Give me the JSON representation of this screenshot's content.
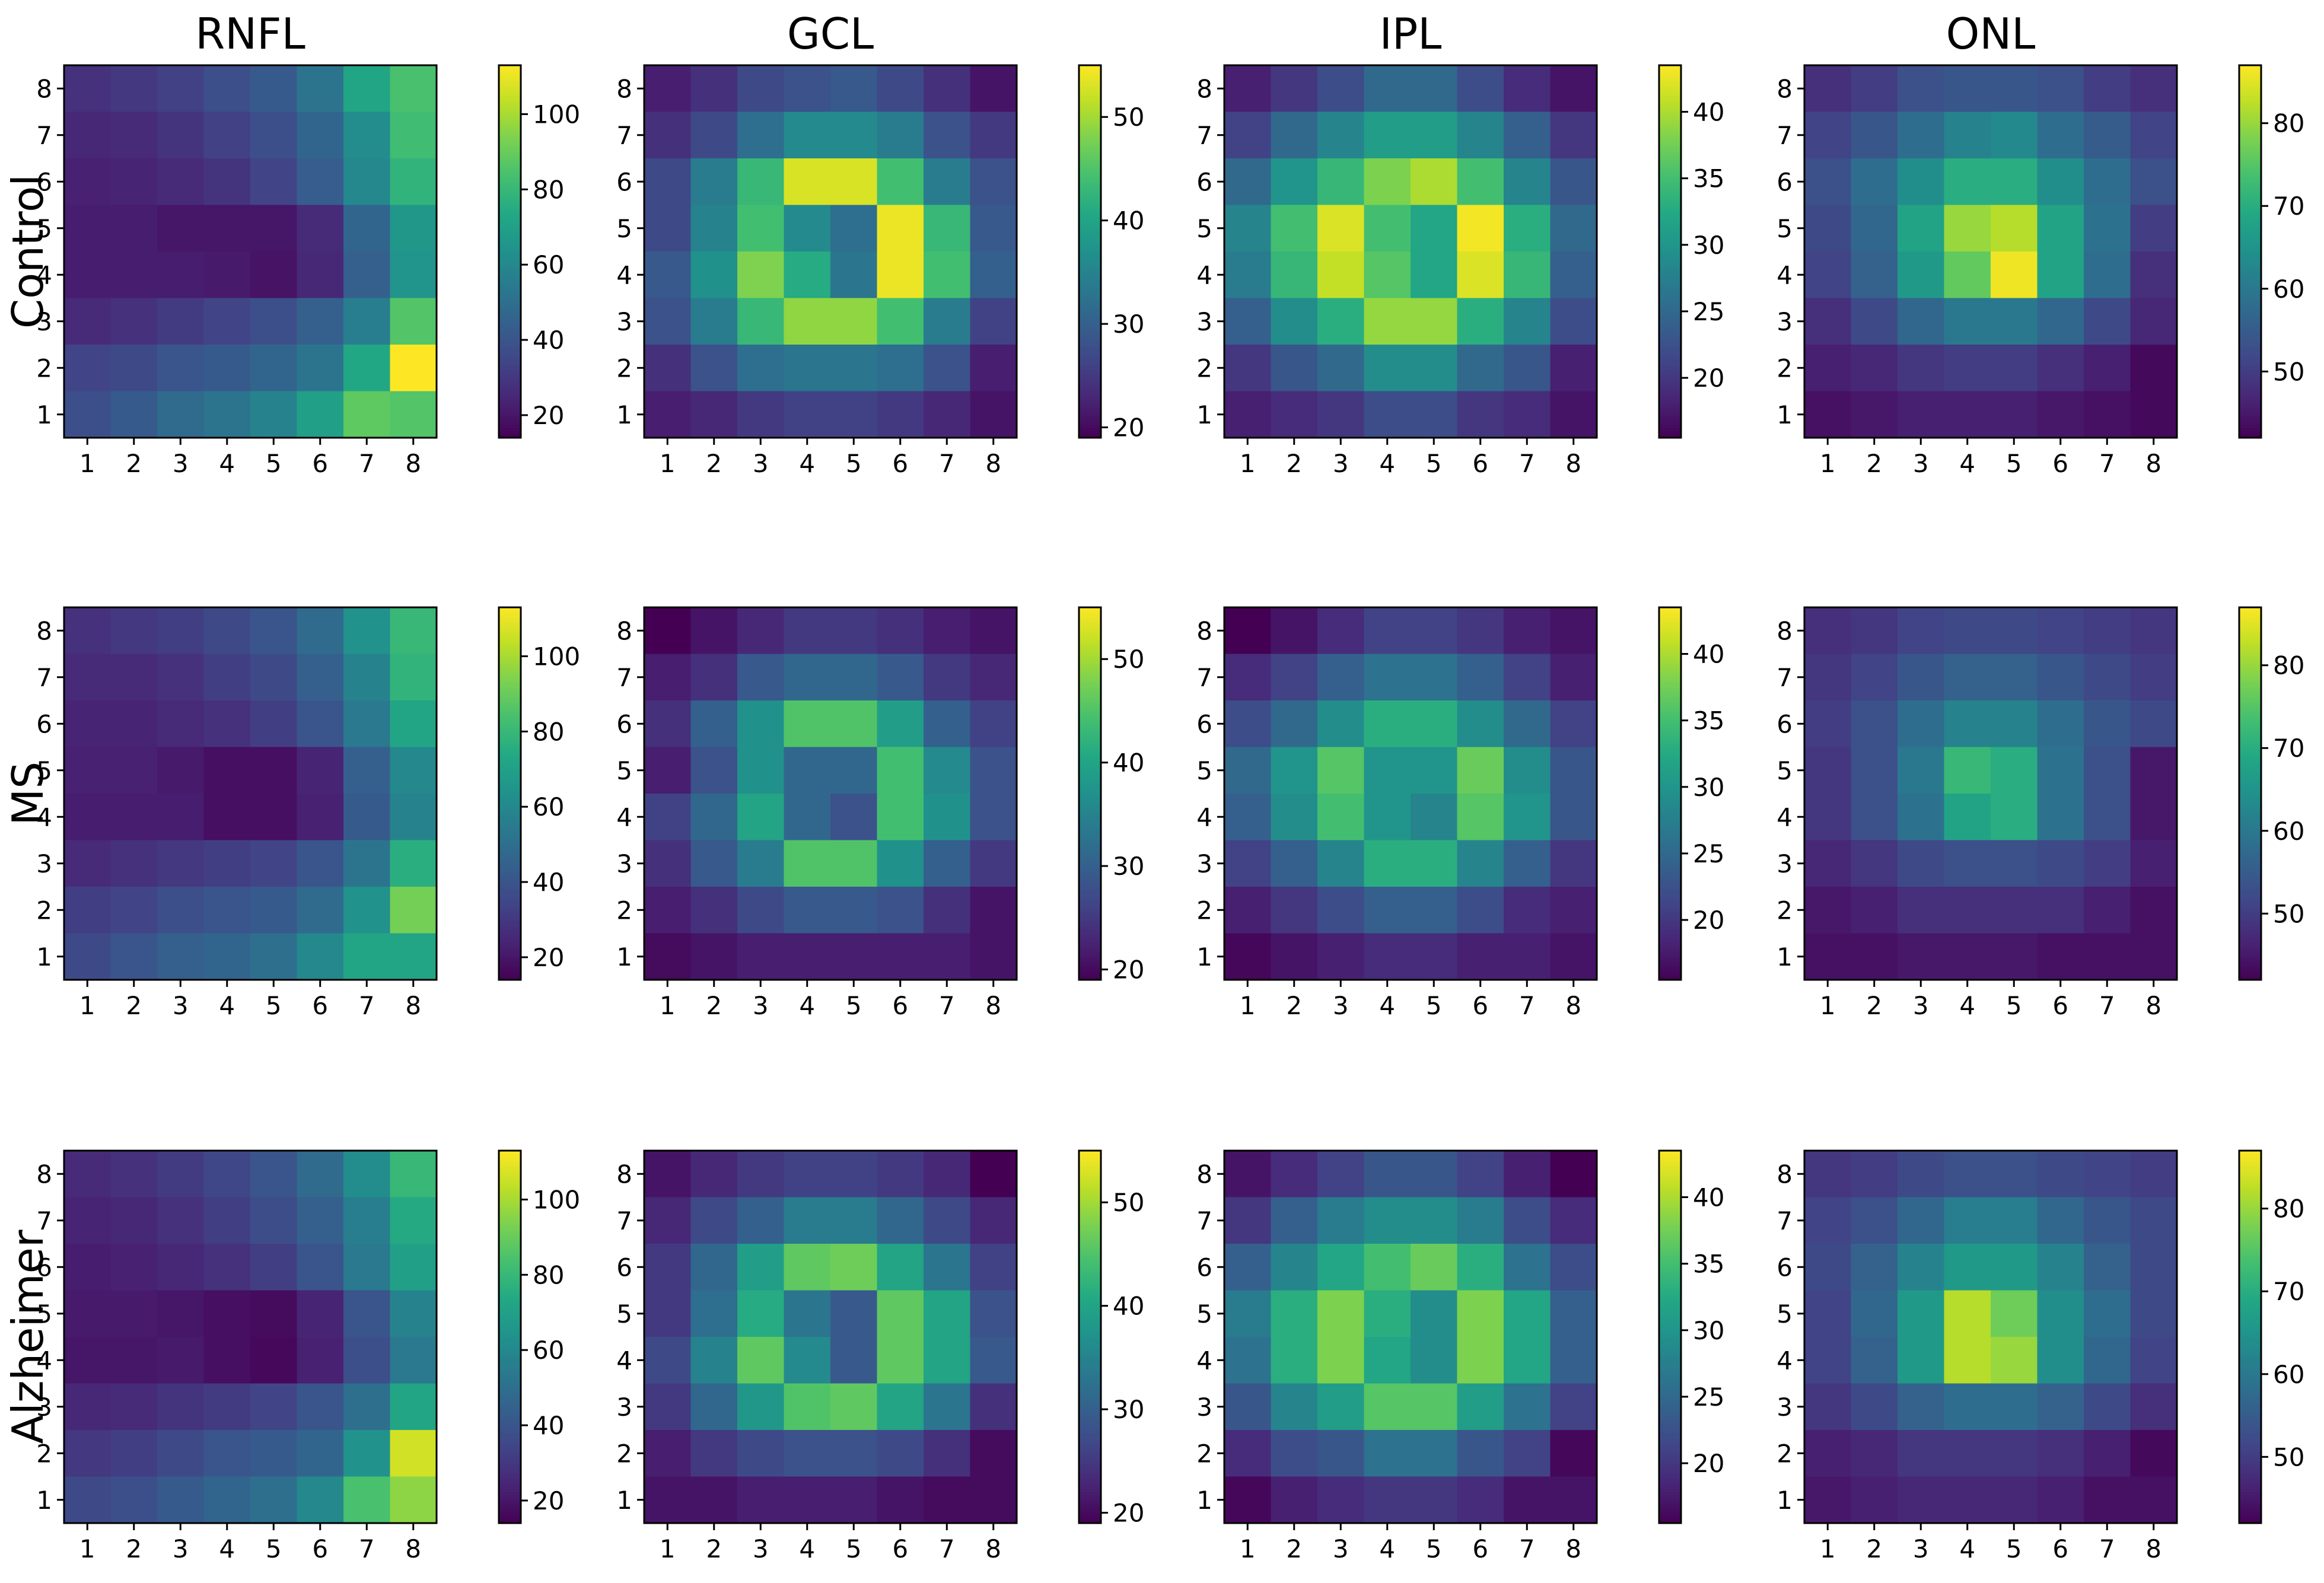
{
  "chart_data": {
    "type": "heatmap",
    "columns": [
      "RNFL",
      "GCL",
      "IPL",
      "ONL"
    ],
    "rows": [
      "Control",
      "MS",
      "Alzheimer"
    ],
    "x_ticks": [
      "1",
      "2",
      "3",
      "4",
      "5",
      "6",
      "7",
      "8"
    ],
    "y_ticks": [
      "1",
      "2",
      "3",
      "4",
      "5",
      "6",
      "7",
      "8"
    ],
    "colormap": "viridis",
    "colorbars": [
      {
        "layer": "RNFL",
        "vmin": 14,
        "vmax": 113,
        "ticks": [
          20,
          40,
          60,
          80,
          100
        ]
      },
      {
        "layer": "GCL",
        "vmin": 19,
        "vmax": 55,
        "ticks": [
          20,
          30,
          40,
          50
        ]
      },
      {
        "layer": "IPL",
        "vmin": 15.5,
        "vmax": 43.5,
        "ticks": [
          20,
          25,
          30,
          35,
          40
        ]
      },
      {
        "layer": "ONL",
        "vmin": 42,
        "vmax": 87,
        "ticks": [
          50,
          60,
          70,
          80
        ]
      }
    ],
    "note": "matrix rows are listed from y=8 (top) down to y=1 (bottom); columns x=1..8",
    "panels": [
      {
        "row": "Control",
        "layer": "RNFL",
        "matrix": [
          [
            28,
            30,
            33,
            38,
            42,
            52,
            72,
            84
          ],
          [
            25,
            26,
            29,
            33,
            38,
            46,
            62,
            82
          ],
          [
            23,
            24,
            26,
            29,
            34,
            43,
            60,
            78
          ],
          [
            22,
            22,
            20,
            20,
            20,
            26,
            46,
            66
          ],
          [
            22,
            22,
            22,
            21,
            19,
            25,
            44,
            65
          ],
          [
            26,
            28,
            31,
            34,
            38,
            44,
            56,
            86
          ],
          [
            34,
            36,
            40,
            42,
            46,
            52,
            73,
            113
          ],
          [
            38,
            42,
            48,
            52,
            58,
            70,
            88,
            86
          ]
        ]
      },
      {
        "row": "Control",
        "layer": "GCL",
        "matrix": [
          [
            22,
            24,
            27,
            28,
            29,
            27,
            24,
            21
          ],
          [
            24,
            27,
            32,
            36,
            36,
            34,
            28,
            25
          ],
          [
            27,
            34,
            43,
            53,
            53,
            44,
            34,
            28
          ],
          [
            27,
            35,
            44,
            36,
            32,
            54,
            43,
            29
          ],
          [
            29,
            37,
            48,
            41,
            33,
            54,
            44,
            30
          ],
          [
            28,
            34,
            43,
            49,
            49,
            44,
            34,
            26
          ],
          [
            24,
            28,
            32,
            33,
            33,
            32,
            28,
            22
          ],
          [
            22,
            23,
            25,
            26,
            26,
            25,
            23,
            21
          ]
        ]
      },
      {
        "row": "Control",
        "layer": "IPL",
        "matrix": [
          [
            18,
            20,
            22,
            25,
            25,
            22,
            19,
            17
          ],
          [
            21,
            25,
            28,
            31,
            31,
            28,
            24,
            20
          ],
          [
            25,
            30,
            34,
            38,
            40,
            35,
            28,
            23
          ],
          [
            28,
            35,
            42,
            35,
            32,
            43,
            33,
            25
          ],
          [
            27,
            34,
            41,
            36,
            32,
            42,
            34,
            24
          ],
          [
            24,
            29,
            33,
            39,
            39,
            33,
            28,
            22
          ],
          [
            20,
            23,
            25,
            29,
            29,
            25,
            23,
            18
          ],
          [
            18,
            19,
            20,
            22,
            22,
            20,
            19,
            17
          ]
        ]
      },
      {
        "row": "Control",
        "layer": "ONL",
        "matrix": [
          [
            48,
            50,
            53,
            54,
            54,
            53,
            50,
            48
          ],
          [
            51,
            54,
            58,
            62,
            63,
            58,
            55,
            51
          ],
          [
            53,
            58,
            64,
            70,
            70,
            64,
            58,
            53
          ],
          [
            52,
            57,
            68,
            80,
            82,
            68,
            59,
            50
          ],
          [
            51,
            56,
            66,
            76,
            86,
            68,
            58,
            48
          ],
          [
            48,
            52,
            57,
            60,
            60,
            57,
            52,
            47
          ],
          [
            46,
            47,
            49,
            50,
            50,
            48,
            46,
            43
          ],
          [
            44,
            45,
            46,
            46,
            46,
            45,
            44,
            43
          ]
        ]
      },
      {
        "row": "MS",
        "layer": "RNFL",
        "matrix": [
          [
            28,
            30,
            32,
            36,
            40,
            48,
            64,
            80
          ],
          [
            26,
            26,
            28,
            32,
            36,
            44,
            58,
            78
          ],
          [
            24,
            24,
            26,
            28,
            32,
            40,
            54,
            72
          ],
          [
            23,
            23,
            21,
            18,
            18,
            24,
            44,
            60
          ],
          [
            22,
            22,
            22,
            18,
            18,
            23,
            42,
            58
          ],
          [
            26,
            28,
            30,
            32,
            34,
            40,
            52,
            76
          ],
          [
            32,
            34,
            38,
            40,
            42,
            48,
            64,
            92
          ],
          [
            36,
            40,
            44,
            46,
            50,
            60,
            72,
            72
          ]
        ]
      },
      {
        "row": "MS",
        "layer": "GCL",
        "matrix": [
          [
            19,
            21,
            23,
            25,
            25,
            24,
            22,
            21
          ],
          [
            22,
            24,
            29,
            31,
            31,
            29,
            25,
            23
          ],
          [
            24,
            30,
            37,
            45,
            45,
            39,
            30,
            26
          ],
          [
            22,
            28,
            37,
            31,
            31,
            44,
            36,
            28
          ],
          [
            26,
            31,
            40,
            31,
            28,
            44,
            37,
            28
          ],
          [
            24,
            29,
            34,
            45,
            45,
            37,
            30,
            25
          ],
          [
            22,
            24,
            27,
            29,
            29,
            28,
            24,
            21
          ],
          [
            20,
            21,
            22,
            22,
            22,
            22,
            22,
            21
          ]
        ]
      },
      {
        "row": "MS",
        "layer": "IPL",
        "matrix": [
          [
            15.5,
            17,
            19,
            21,
            21,
            20,
            18,
            17
          ],
          [
            19,
            21,
            24,
            26,
            26,
            24,
            21,
            18
          ],
          [
            22,
            25,
            29,
            33,
            33,
            29,
            25,
            21
          ],
          [
            25,
            30,
            36,
            30,
            30,
            37,
            29,
            23
          ],
          [
            24,
            29,
            35,
            30,
            28,
            36,
            30,
            23
          ],
          [
            21,
            24,
            28,
            33,
            33,
            28,
            24,
            20
          ],
          [
            18,
            20,
            22,
            24,
            24,
            22,
            19,
            18
          ],
          [
            16,
            17,
            18,
            19,
            19,
            18,
            18,
            17
          ]
        ]
      },
      {
        "row": "MS",
        "layer": "ONL",
        "matrix": [
          [
            48,
            49,
            51,
            52,
            52,
            51,
            50,
            49
          ],
          [
            49,
            51,
            54,
            56,
            56,
            54,
            52,
            50
          ],
          [
            50,
            53,
            58,
            62,
            62,
            58,
            54,
            52
          ],
          [
            49,
            53,
            60,
            72,
            70,
            59,
            53,
            45
          ],
          [
            49,
            53,
            59,
            68,
            70,
            59,
            53,
            45
          ],
          [
            47,
            49,
            52,
            53,
            53,
            52,
            50,
            46
          ],
          [
            45,
            46,
            48,
            48,
            48,
            48,
            46,
            44
          ],
          [
            44,
            44,
            45,
            45,
            45,
            44,
            44,
            44
          ]
        ]
      },
      {
        "row": "Alzheimer",
        "layer": "RNFL",
        "matrix": [
          [
            26,
            28,
            31,
            35,
            40,
            48,
            62,
            80
          ],
          [
            24,
            25,
            28,
            32,
            37,
            44,
            56,
            74
          ],
          [
            22,
            23,
            25,
            28,
            32,
            40,
            54,
            70
          ],
          [
            21,
            21,
            20,
            18,
            17,
            24,
            40,
            58
          ],
          [
            20,
            20,
            21,
            18,
            16,
            23,
            38,
            54
          ],
          [
            25,
            26,
            29,
            31,
            34,
            40,
            50,
            72
          ],
          [
            30,
            32,
            36,
            40,
            42,
            46,
            64,
            106
          ],
          [
            36,
            38,
            42,
            46,
            50,
            60,
            84,
            96
          ]
        ]
      },
      {
        "row": "Alzheimer",
        "layer": "GCL",
        "matrix": [
          [
            21,
            23,
            25,
            26,
            26,
            25,
            23,
            19
          ],
          [
            23,
            27,
            30,
            34,
            34,
            31,
            27,
            23
          ],
          [
            25,
            31,
            39,
            46,
            47,
            40,
            33,
            26
          ],
          [
            25,
            32,
            41,
            33,
            29,
            46,
            40,
            28
          ],
          [
            27,
            35,
            46,
            36,
            29,
            46,
            40,
            29
          ],
          [
            25,
            31,
            38,
            45,
            46,
            40,
            33,
            24
          ],
          [
            22,
            25,
            27,
            28,
            28,
            27,
            24,
            20
          ],
          [
            21,
            21,
            22,
            22,
            22,
            21,
            20,
            20
          ]
        ]
      },
      {
        "row": "Alzheimer",
        "layer": "IPL",
        "matrix": [
          [
            17,
            19,
            21,
            23,
            23,
            21,
            18,
            15.5
          ],
          [
            20,
            24,
            27,
            29,
            29,
            27,
            22,
            19
          ],
          [
            24,
            28,
            32,
            35,
            37,
            33,
            26,
            22
          ],
          [
            27,
            33,
            38,
            33,
            29,
            38,
            32,
            24
          ],
          [
            26,
            33,
            38,
            32,
            29,
            38,
            32,
            24
          ],
          [
            23,
            28,
            31,
            36,
            36,
            31,
            26,
            21
          ],
          [
            19,
            22,
            23,
            26,
            26,
            23,
            21,
            16
          ],
          [
            16,
            18,
            19,
            20,
            20,
            19,
            17,
            17
          ]
        ]
      },
      {
        "row": "Alzheimer",
        "layer": "ONL",
        "matrix": [
          [
            49,
            50,
            52,
            53,
            53,
            52,
            51,
            50
          ],
          [
            51,
            53,
            57,
            61,
            61,
            57,
            54,
            52
          ],
          [
            52,
            56,
            62,
            66,
            66,
            62,
            56,
            52
          ],
          [
            51,
            57,
            66,
            82,
            77,
            64,
            58,
            52
          ],
          [
            51,
            56,
            66,
            82,
            80,
            64,
            57,
            51
          ],
          [
            49,
            52,
            56,
            58,
            58,
            56,
            52,
            48
          ],
          [
            46,
            47,
            49,
            49,
            49,
            48,
            46,
            43
          ],
          [
            45,
            46,
            47,
            47,
            47,
            46,
            44,
            44
          ]
        ]
      }
    ]
  }
}
